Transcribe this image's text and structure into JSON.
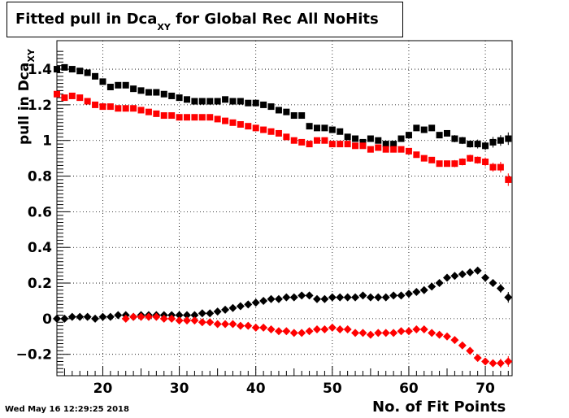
{
  "chart_data": {
    "type": "scatter",
    "title_main": "Fitted pull in Dca",
    "title_sub": "XY",
    "title_rest": " for Global Rec All NoHits",
    "ylabel_main": "pull in Dca",
    "ylabel_sub": "XY",
    "xlabel": "No. of Fit Points",
    "xlim": [
      14,
      73.5
    ],
    "ylim": [
      -0.32,
      1.56
    ],
    "x_ticks": [
      20,
      30,
      40,
      50,
      60,
      70
    ],
    "y_ticks": [
      -0.2,
      0,
      0.2,
      0.4,
      0.6,
      0.8,
      1,
      1.2,
      1.4
    ],
    "y_tick_labels": [
      "−0.2",
      "0",
      "0.2",
      "0.4",
      "0.6",
      "0.8",
      "1",
      "1.2",
      "1.4"
    ],
    "grid": true,
    "series": [
      {
        "color": "#000000",
        "marker": "square",
        "x": [
          14,
          15,
          16,
          17,
          18,
          19,
          20,
          21,
          22,
          23,
          24,
          25,
          26,
          27,
          28,
          29,
          30,
          31,
          32,
          33,
          34,
          35,
          36,
          37,
          38,
          39,
          40,
          41,
          42,
          43,
          44,
          45,
          46,
          47,
          48,
          49,
          50,
          51,
          52,
          53,
          54,
          55,
          56,
          57,
          58,
          59,
          60,
          61,
          62,
          63,
          64,
          65,
          66,
          67,
          68,
          69,
          70,
          71,
          72,
          73
        ],
        "y": [
          1.4,
          1.41,
          1.4,
          1.39,
          1.38,
          1.36,
          1.33,
          1.3,
          1.31,
          1.31,
          1.29,
          1.28,
          1.27,
          1.27,
          1.26,
          1.25,
          1.24,
          1.23,
          1.22,
          1.22,
          1.22,
          1.22,
          1.23,
          1.22,
          1.22,
          1.21,
          1.21,
          1.2,
          1.19,
          1.17,
          1.16,
          1.14,
          1.14,
          1.08,
          1.07,
          1.07,
          1.06,
          1.05,
          1.02,
          1.01,
          0.99,
          1.01,
          1.0,
          0.98,
          0.98,
          1.01,
          1.03,
          1.07,
          1.06,
          1.07,
          1.03,
          1.04,
          1.01,
          1.0,
          0.98,
          0.98,
          0.97,
          0.99,
          1.0,
          1.01
        ],
        "err": [
          0.015,
          0.015,
          0.015,
          0.015,
          0.015,
          0.015,
          0.015,
          0.015,
          0.015,
          0.015,
          0.015,
          0.015,
          0.015,
          0.015,
          0.015,
          0.015,
          0.015,
          0.015,
          0.015,
          0.015,
          0.015,
          0.015,
          0.015,
          0.015,
          0.015,
          0.015,
          0.015,
          0.015,
          0.015,
          0.015,
          0.015,
          0.015,
          0.015,
          0.015,
          0.015,
          0.015,
          0.015,
          0.015,
          0.015,
          0.015,
          0.015,
          0.015,
          0.015,
          0.015,
          0.015,
          0.015,
          0.015,
          0.015,
          0.015,
          0.015,
          0.015,
          0.015,
          0.02,
          0.02,
          0.02,
          0.025,
          0.025,
          0.03,
          0.03,
          0.035
        ]
      },
      {
        "color": "#ff0000",
        "marker": "square",
        "x": [
          14,
          15,
          16,
          17,
          18,
          19,
          20,
          21,
          22,
          23,
          24,
          25,
          26,
          27,
          28,
          29,
          30,
          31,
          32,
          33,
          34,
          35,
          36,
          37,
          38,
          39,
          40,
          41,
          42,
          43,
          44,
          45,
          46,
          47,
          48,
          49,
          50,
          51,
          52,
          53,
          54,
          55,
          56,
          57,
          58,
          59,
          60,
          61,
          62,
          63,
          64,
          65,
          66,
          67,
          68,
          69,
          70,
          71,
          72,
          73
        ],
        "y": [
          1.26,
          1.24,
          1.25,
          1.24,
          1.22,
          1.2,
          1.19,
          1.19,
          1.18,
          1.18,
          1.18,
          1.17,
          1.16,
          1.15,
          1.14,
          1.14,
          1.13,
          1.13,
          1.13,
          1.13,
          1.13,
          1.12,
          1.11,
          1.1,
          1.09,
          1.08,
          1.07,
          1.06,
          1.05,
          1.04,
          1.02,
          1.0,
          0.99,
          0.98,
          1.0,
          1.0,
          0.98,
          0.98,
          0.98,
          0.97,
          0.97,
          0.95,
          0.96,
          0.95,
          0.95,
          0.95,
          0.94,
          0.92,
          0.9,
          0.89,
          0.87,
          0.87,
          0.87,
          0.88,
          0.9,
          0.89,
          0.88,
          0.85,
          0.85,
          0.78
        ],
        "err": [
          0.015,
          0.015,
          0.015,
          0.015,
          0.015,
          0.015,
          0.015,
          0.015,
          0.015,
          0.015,
          0.015,
          0.015,
          0.015,
          0.015,
          0.015,
          0.015,
          0.015,
          0.015,
          0.015,
          0.015,
          0.015,
          0.015,
          0.015,
          0.015,
          0.015,
          0.015,
          0.015,
          0.015,
          0.015,
          0.015,
          0.015,
          0.015,
          0.015,
          0.015,
          0.015,
          0.015,
          0.015,
          0.015,
          0.015,
          0.015,
          0.015,
          0.015,
          0.015,
          0.015,
          0.015,
          0.015,
          0.015,
          0.015,
          0.015,
          0.015,
          0.015,
          0.015,
          0.02,
          0.02,
          0.02,
          0.02,
          0.025,
          0.025,
          0.03,
          0.035
        ]
      },
      {
        "color": "#000000",
        "marker": "diamond",
        "x": [
          14,
          15,
          16,
          17,
          18,
          19,
          20,
          21,
          22,
          23,
          24,
          25,
          26,
          27,
          28,
          29,
          30,
          31,
          32,
          33,
          34,
          35,
          36,
          37,
          38,
          39,
          40,
          41,
          42,
          43,
          44,
          45,
          46,
          47,
          48,
          49,
          50,
          51,
          52,
          53,
          54,
          55,
          56,
          57,
          58,
          59,
          60,
          61,
          62,
          63,
          64,
          65,
          66,
          67,
          68,
          69,
          70,
          71,
          72,
          73
        ],
        "y": [
          0.0,
          0.0,
          0.01,
          0.01,
          0.01,
          0.0,
          0.01,
          0.01,
          0.02,
          0.02,
          0.01,
          0.02,
          0.02,
          0.02,
          0.02,
          0.02,
          0.02,
          0.02,
          0.02,
          0.03,
          0.03,
          0.04,
          0.05,
          0.06,
          0.07,
          0.08,
          0.09,
          0.1,
          0.11,
          0.11,
          0.12,
          0.12,
          0.13,
          0.13,
          0.11,
          0.11,
          0.12,
          0.12,
          0.12,
          0.12,
          0.13,
          0.12,
          0.12,
          0.12,
          0.13,
          0.13,
          0.14,
          0.15,
          0.16,
          0.18,
          0.2,
          0.23,
          0.24,
          0.25,
          0.26,
          0.27,
          0.23,
          0.2,
          0.17,
          0.12
        ],
        "err": [
          0.008,
          0.008,
          0.008,
          0.008,
          0.008,
          0.008,
          0.008,
          0.008,
          0.008,
          0.008,
          0.008,
          0.008,
          0.008,
          0.008,
          0.008,
          0.008,
          0.008,
          0.008,
          0.008,
          0.008,
          0.008,
          0.008,
          0.008,
          0.008,
          0.008,
          0.008,
          0.008,
          0.008,
          0.008,
          0.008,
          0.008,
          0.008,
          0.008,
          0.008,
          0.008,
          0.008,
          0.008,
          0.008,
          0.008,
          0.008,
          0.008,
          0.008,
          0.008,
          0.008,
          0.008,
          0.008,
          0.01,
          0.01,
          0.01,
          0.01,
          0.012,
          0.012,
          0.015,
          0.015,
          0.015,
          0.02,
          0.02,
          0.02,
          0.025,
          0.03
        ]
      },
      {
        "color": "#ff0000",
        "marker": "diamond",
        "x": [
          23,
          24,
          25,
          26,
          27,
          28,
          29,
          30,
          31,
          32,
          33,
          34,
          35,
          36,
          37,
          38,
          39,
          40,
          41,
          42,
          43,
          44,
          45,
          46,
          47,
          48,
          49,
          50,
          51,
          52,
          53,
          54,
          55,
          56,
          57,
          58,
          59,
          60,
          61,
          62,
          63,
          64,
          65,
          66,
          67,
          68,
          69,
          70,
          71,
          72,
          73
        ],
        "y": [
          0.0,
          0.01,
          0.01,
          0.01,
          0.01,
          0.0,
          0.0,
          -0.01,
          -0.01,
          -0.01,
          -0.02,
          -0.02,
          -0.03,
          -0.03,
          -0.03,
          -0.04,
          -0.04,
          -0.05,
          -0.05,
          -0.06,
          -0.07,
          -0.07,
          -0.08,
          -0.08,
          -0.07,
          -0.06,
          -0.06,
          -0.05,
          -0.06,
          -0.06,
          -0.08,
          -0.08,
          -0.09,
          -0.08,
          -0.08,
          -0.08,
          -0.07,
          -0.07,
          -0.06,
          -0.06,
          -0.08,
          -0.09,
          -0.1,
          -0.12,
          -0.15,
          -0.18,
          -0.22,
          -0.24,
          -0.25,
          -0.25,
          -0.24
        ],
        "err": [
          0.008,
          0.008,
          0.008,
          0.008,
          0.008,
          0.008,
          0.008,
          0.008,
          0.008,
          0.008,
          0.008,
          0.008,
          0.008,
          0.008,
          0.008,
          0.008,
          0.008,
          0.008,
          0.008,
          0.008,
          0.008,
          0.008,
          0.008,
          0.008,
          0.008,
          0.008,
          0.008,
          0.008,
          0.008,
          0.008,
          0.008,
          0.008,
          0.008,
          0.008,
          0.008,
          0.008,
          0.008,
          0.01,
          0.01,
          0.01,
          0.01,
          0.01,
          0.012,
          0.012,
          0.015,
          0.015,
          0.02,
          0.02,
          0.02,
          0.025,
          0.03
        ]
      }
    ]
  },
  "footer": {
    "date": "Wed May 16 12:29:25 2018"
  }
}
